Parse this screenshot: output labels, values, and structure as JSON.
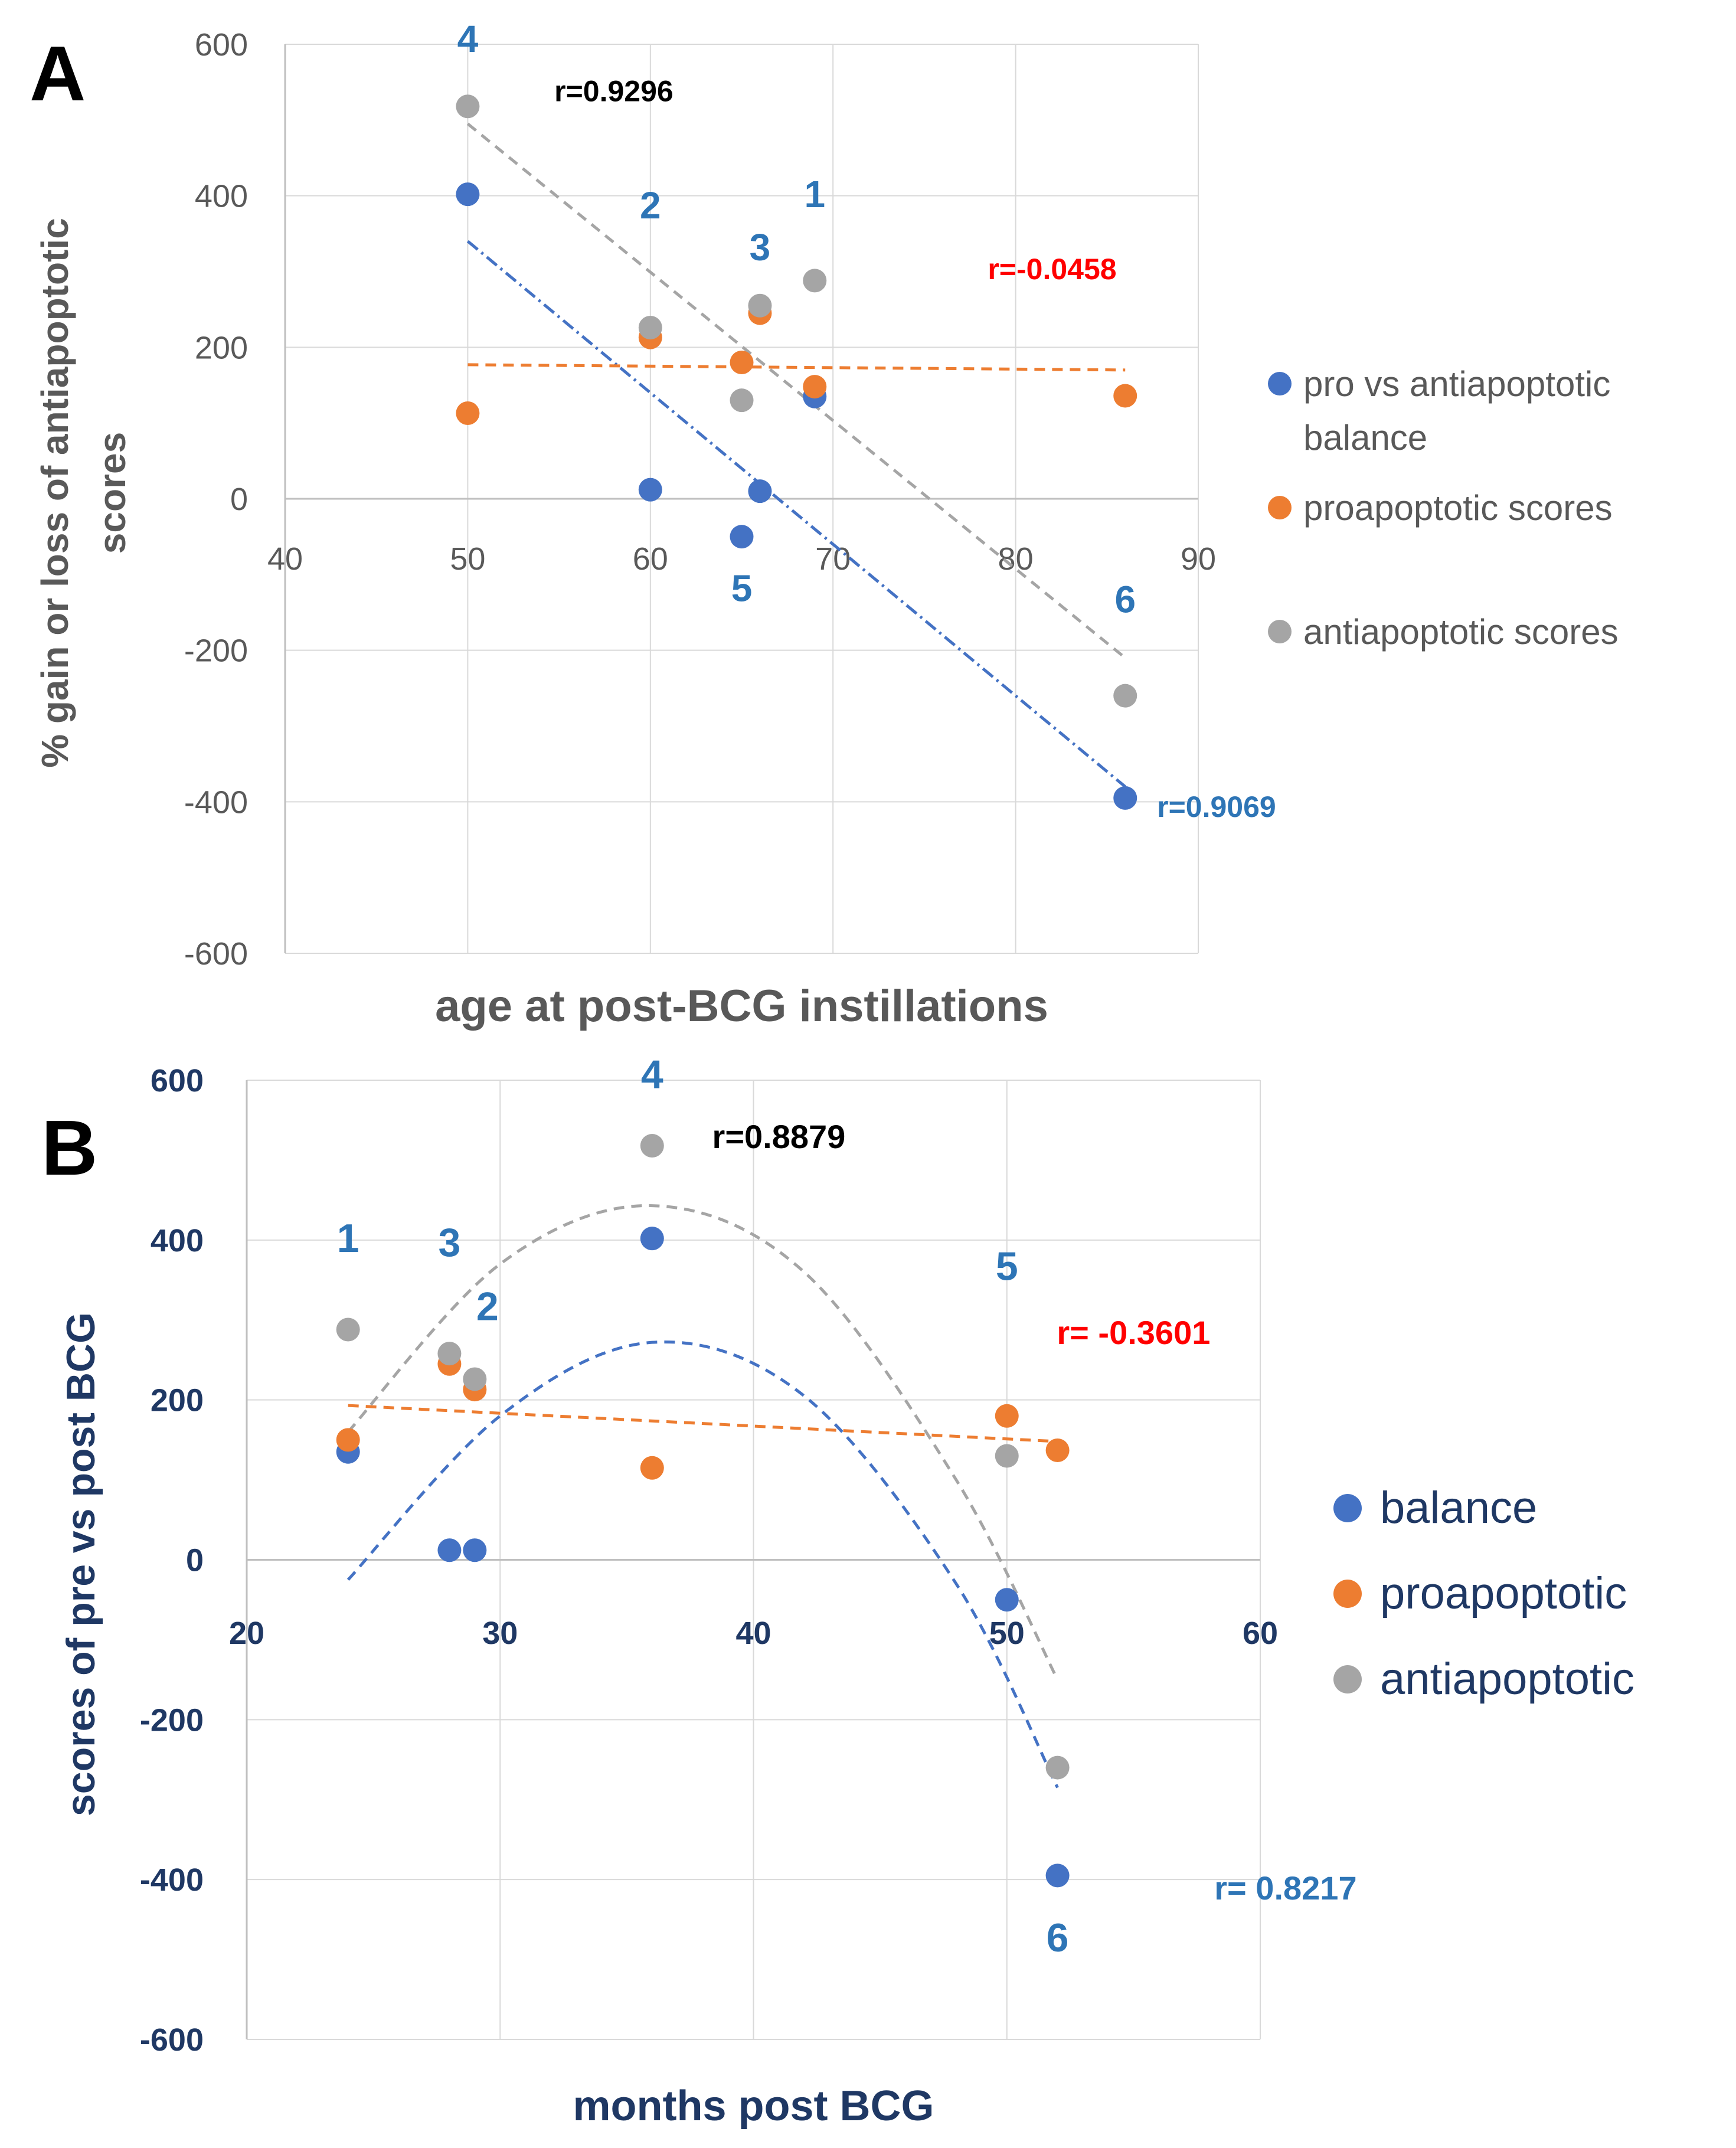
{
  "chart_data": [
    {
      "panel": "A",
      "type": "scatter",
      "xlabel": "age at post-BCG instillations",
      "ylabel_lines": [
        "% gain or loss of antiapoptotic",
        "scores"
      ],
      "xlim": [
        40,
        90
      ],
      "ylim": [
        -600,
        600
      ],
      "xticks": [
        40,
        50,
        60,
        70,
        80,
        90
      ],
      "yticks": [
        600,
        400,
        200,
        0,
        -200,
        -400,
        -600
      ],
      "grid": true,
      "legend_position": "right",
      "series": [
        {
          "name": "pro vs antiapoptotic balance",
          "key": "balance",
          "color": "#4472C4",
          "points": [
            [
              50,
              402
            ],
            [
              60,
              12
            ],
            [
              65,
              -50
            ],
            [
              66,
              10
            ],
            [
              69,
              135
            ],
            [
              86,
              -395
            ]
          ],
          "trend": {
            "kind": "linear",
            "x_range": [
              50,
              86
            ],
            "y_range": [
              340,
              -380
            ],
            "dash": "dashdot"
          }
        },
        {
          "name": "proapoptotic scores",
          "key": "pro",
          "color": "#ED7D31",
          "points": [
            [
              50,
              113
            ],
            [
              60,
              213
            ],
            [
              65,
              180
            ],
            [
              66,
              245
            ],
            [
              69,
              148
            ],
            [
              86,
              136
            ]
          ],
          "trend": {
            "kind": "linear",
            "x_range": [
              50,
              86
            ],
            "y_range": [
              177,
              170
            ],
            "dash": "dash"
          }
        },
        {
          "name": "antiapoptotic scores",
          "key": "anti",
          "color": "#A5A5A5",
          "points": [
            [
              50,
              518
            ],
            [
              60,
              226
            ],
            [
              65,
              130
            ],
            [
              66,
              255
            ],
            [
              69,
              288
            ],
            [
              86,
              -260
            ]
          ],
          "trend": {
            "kind": "linear",
            "x_range": [
              50,
              86
            ],
            "y_range": [
              495,
              -210
            ],
            "dash": "dash"
          }
        }
      ],
      "point_labels": [
        {
          "text": "4",
          "x": 50,
          "y": 590,
          "color": "#2E75B6"
        },
        {
          "text": "2",
          "x": 60,
          "y": 370,
          "color": "#2E75B6"
        },
        {
          "text": "3",
          "x": 66,
          "y": 315,
          "color": "#2E75B6"
        },
        {
          "text": "1",
          "x": 69,
          "y": 385,
          "color": "#2E75B6"
        },
        {
          "text": "5",
          "x": 65,
          "y": -135,
          "color": "#2E75B6"
        },
        {
          "text": "6",
          "x": 86,
          "y": -150,
          "color": "#2E75B6"
        }
      ],
      "annotations": [
        {
          "text": "r=0.9296",
          "x": 58,
          "y": 525,
          "color": "#000000"
        },
        {
          "text": "r=-0.0458",
          "x": 82,
          "y": 290,
          "color": "#FF0000"
        },
        {
          "text": "r=0.9069",
          "x": 91,
          "y": -420,
          "color": "#2E75B6"
        }
      ]
    },
    {
      "panel": "B",
      "type": "scatter",
      "xlabel": "months post BCG",
      "ylabel_lines": [
        "scores of pre vs post BCG"
      ],
      "xlim": [
        20,
        60
      ],
      "ylim": [
        -600,
        600
      ],
      "xticks": [
        20,
        30,
        40,
        50,
        60
      ],
      "yticks": [
        600,
        400,
        200,
        0,
        -200,
        -400,
        -600
      ],
      "grid": true,
      "legend_position": "right",
      "series": [
        {
          "name": "balance",
          "key": "balance",
          "color": "#4472C4",
          "points": [
            [
              24,
              135
            ],
            [
              28,
              12
            ],
            [
              29,
              12
            ],
            [
              36,
              402
            ],
            [
              50,
              -50
            ],
            [
              52,
              -395
            ]
          ],
          "trend": {
            "kind": "quadratic",
            "x_range": [
              24,
              52
            ],
            "samples": [
              [
                24,
                -25
              ],
              [
                30,
                180
              ],
              [
                36,
                272
              ],
              [
                42,
                205
              ],
              [
                48,
                -30
              ],
              [
                52,
                -285
              ]
            ],
            "dash": "dash"
          }
        },
        {
          "name": "proapoptotic",
          "key": "pro",
          "color": "#ED7D31",
          "points": [
            [
              24,
              150
            ],
            [
              28,
              245
            ],
            [
              29,
              213
            ],
            [
              36,
              115
            ],
            [
              50,
              180
            ],
            [
              52,
              137
            ]
          ],
          "trend": {
            "kind": "linear",
            "x_range": [
              24,
              52
            ],
            "y_range": [
              193,
              148
            ],
            "dash": "dash"
          }
        },
        {
          "name": "antiapoptotic",
          "key": "anti",
          "color": "#A5A5A5",
          "points": [
            [
              24,
              288
            ],
            [
              28,
              258
            ],
            [
              29,
              226
            ],
            [
              36,
              518
            ],
            [
              50,
              130
            ],
            [
              52,
              -260
            ]
          ],
          "trend": {
            "kind": "quadratic",
            "x_range": [
              24,
              52
            ],
            "samples": [
              [
                24,
                160
              ],
              [
                30,
                370
              ],
              [
                36,
                443
              ],
              [
                42,
                360
              ],
              [
                48,
                100
              ],
              [
                52,
                -150
              ]
            ],
            "dash": "dash"
          }
        }
      ],
      "point_labels": [
        {
          "text": "4",
          "x": 36,
          "y": 590,
          "color": "#2E75B6"
        },
        {
          "text": "1",
          "x": 24,
          "y": 385,
          "color": "#2E75B6"
        },
        {
          "text": "3",
          "x": 28,
          "y": 380,
          "color": "#2E75B6"
        },
        {
          "text": "2",
          "x": 29.5,
          "y": 300,
          "color": "#2E75B6"
        },
        {
          "text": "5",
          "x": 50,
          "y": 350,
          "color": "#2E75B6"
        },
        {
          "text": "6",
          "x": 52,
          "y": -490,
          "color": "#2E75B6"
        }
      ],
      "annotations": [
        {
          "text": "r=0.8879",
          "x": 41,
          "y": 515,
          "color": "#000000"
        },
        {
          "text": "r= -0.3601",
          "x": 55,
          "y": 270,
          "color": "#FF0000"
        },
        {
          "text": "r= 0.8217",
          "x": 61,
          "y": -425,
          "color": "#2E75B6"
        }
      ]
    }
  ],
  "panel_letters": [
    "A",
    "B"
  ],
  "legend_A": [
    "pro vs antiapoptotic",
    "balance",
    "proapoptotic scores",
    "antiapoptotic scores"
  ],
  "legend_B": [
    "balance",
    "proapoptotic",
    "antiapoptotic"
  ]
}
